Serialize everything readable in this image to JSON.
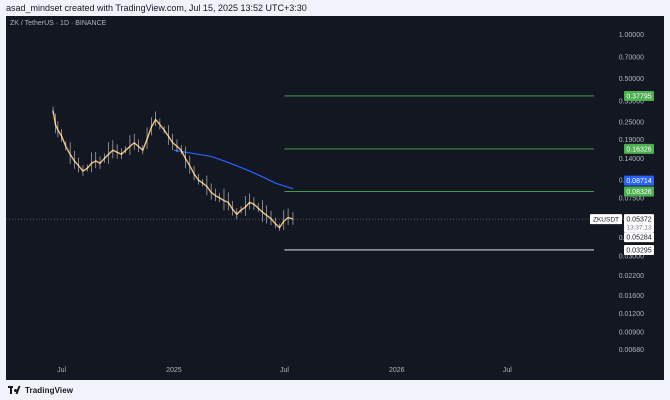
{
  "header": {
    "caption": "asad_mindset created with TradingView.com, Jul 15, 2025 13:52 UTC+3:30"
  },
  "symbol": {
    "description": "ZK / TetherUS · 1D · BINANCE"
  },
  "footer": {
    "brand": "TradingView"
  },
  "colors": {
    "background": "#131722",
    "candle": "#f0c27b",
    "wick": "#ffffff",
    "ma_line": "#2962ff",
    "level_line": "#4caf50",
    "support_line": "#ffffff",
    "axis_text": "#b2b5be"
  },
  "chart_data": {
    "type": "line",
    "title": "",
    "xlabel": "",
    "ylabel": "",
    "y_scale": "log",
    "ylim": [
      0.0055,
      1.2
    ],
    "y_ticks": [
      "1.00000",
      "0.70000",
      "0.50000",
      "0.35000",
      "0.25000",
      "0.19000",
      "0.14000",
      "0.10000",
      "0.07500",
      "0.05500",
      "0.04000",
      "0.03000",
      "0.02200",
      "0.01600",
      "0.01200",
      "0.00900",
      "0.00680"
    ],
    "x_ticks": [
      "Jul",
      "2025",
      "Jul",
      "2026",
      "Jul"
    ],
    "grid": false,
    "legend": "none",
    "series": [
      {
        "kind": "price",
        "x": [
          "2024-06-17",
          "2024-06-21",
          "2024-06-25",
          "2024-07-01",
          "2024-07-08",
          "2024-07-15",
          "2024-07-22",
          "2024-07-29",
          "2024-08-05",
          "2024-08-12",
          "2024-08-19",
          "2024-08-26",
          "2024-09-02",
          "2024-09-09",
          "2024-09-16",
          "2024-09-23",
          "2024-09-30",
          "2024-10-07",
          "2024-10-14",
          "2024-10-21",
          "2024-10-28",
          "2024-11-04",
          "2024-11-11",
          "2024-11-18",
          "2024-11-25",
          "2024-12-02",
          "2024-12-09",
          "2024-12-16",
          "2024-12-23",
          "2024-12-30",
          "2025-01-06",
          "2025-01-13",
          "2025-01-20",
          "2025-01-27",
          "2025-02-03",
          "2025-02-10",
          "2025-02-17",
          "2025-02-24",
          "2025-03-03",
          "2025-03-10",
          "2025-03-17",
          "2025-03-24",
          "2025-03-31",
          "2025-04-07",
          "2025-04-14",
          "2025-04-21",
          "2025-04-28",
          "2025-05-05",
          "2025-05-12",
          "2025-05-19",
          "2025-05-26",
          "2025-06-02",
          "2025-06-09",
          "2025-06-16",
          "2025-06-23",
          "2025-06-30",
          "2025-07-07",
          "2025-07-15"
        ],
        "values": [
          0.3,
          0.24,
          0.22,
          0.2,
          0.17,
          0.15,
          0.135,
          0.125,
          0.115,
          0.12,
          0.13,
          0.135,
          0.13,
          0.14,
          0.15,
          0.16,
          0.155,
          0.15,
          0.16,
          0.17,
          0.18,
          0.17,
          0.16,
          0.19,
          0.23,
          0.26,
          0.24,
          0.22,
          0.2,
          0.18,
          0.17,
          0.16,
          0.14,
          0.125,
          0.11,
          0.1,
          0.095,
          0.09,
          0.082,
          0.078,
          0.075,
          0.072,
          0.07,
          0.063,
          0.058,
          0.062,
          0.065,
          0.07,
          0.068,
          0.064,
          0.06,
          0.057,
          0.054,
          0.05,
          0.047,
          0.052,
          0.055,
          0.05372
        ]
      },
      {
        "kind": "moving-average",
        "x": [
          "2025-01-01",
          "2025-01-20",
          "2025-02-10",
          "2025-03-03",
          "2025-03-24",
          "2025-04-14",
          "2025-05-05",
          "2025-05-26",
          "2025-06-16",
          "2025-07-07",
          "2025-07-15"
        ],
        "values": [
          0.16,
          0.155,
          0.15,
          0.145,
          0.135,
          0.125,
          0.115,
          0.105,
          0.095,
          0.089,
          0.08714
        ]
      }
    ],
    "levels": [
      {
        "kind": "resistance",
        "value": 0.37795,
        "label": "0.37795",
        "from": "2025-07-01"
      },
      {
        "kind": "resistance",
        "value": 0.16326,
        "label": "0.16326",
        "from": "2025-07-01"
      },
      {
        "kind": "resistance",
        "value": 0.08326,
        "label": "0.08326",
        "from": "2025-07-01"
      },
      {
        "kind": "support",
        "value": 0.03295,
        "label": "0.03295",
        "from": "2025-07-01"
      }
    ],
    "price_badges": [
      {
        "kind": "ma",
        "value": 0.08714,
        "label": "0.08714"
      },
      {
        "kind": "current",
        "value": 0.05372,
        "label": "0.05372",
        "symbol": "ZKUSDT",
        "countdown": "13:37:13"
      },
      {
        "kind": "low",
        "value": 0.05284,
        "label": "0.05284"
      }
    ],
    "last_price_line": 0.05372
  }
}
